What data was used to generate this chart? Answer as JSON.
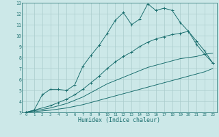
{
  "xlabel": "Humidex (Indice chaleur)",
  "bg_color": "#cce8e8",
  "grid_color": "#aacccc",
  "line_color": "#1a6e6e",
  "xlim": [
    -0.5,
    23.5
  ],
  "ylim": [
    3,
    13
  ],
  "xticks": [
    0,
    1,
    2,
    3,
    4,
    5,
    6,
    7,
    8,
    9,
    10,
    11,
    12,
    13,
    14,
    15,
    16,
    17,
    18,
    19,
    20,
    21,
    22,
    23
  ],
  "yticks": [
    3,
    4,
    5,
    6,
    7,
    8,
    9,
    10,
    11,
    12,
    13
  ],
  "line1_x": [
    0,
    1,
    2,
    3,
    4,
    5,
    6,
    7,
    8,
    9,
    10,
    11,
    12,
    13,
    14,
    15,
    16,
    17,
    18,
    19,
    20,
    21,
    22,
    23
  ],
  "line1_y": [
    3.0,
    3.2,
    4.6,
    5.1,
    5.1,
    5.0,
    5.5,
    7.2,
    8.2,
    9.1,
    10.2,
    11.4,
    12.1,
    11.0,
    11.5,
    12.9,
    12.3,
    12.5,
    12.3,
    11.2,
    10.4,
    9.2,
    8.3,
    7.5
  ],
  "line2_x": [
    0,
    3,
    4,
    5,
    6,
    7,
    8,
    9,
    10,
    11,
    12,
    13,
    14,
    15,
    16,
    17,
    18,
    19,
    20,
    21,
    22,
    23
  ],
  "line2_y": [
    3.0,
    3.6,
    3.9,
    4.2,
    4.6,
    5.1,
    5.7,
    6.3,
    7.0,
    7.6,
    8.1,
    8.5,
    9.0,
    9.4,
    9.7,
    9.9,
    10.1,
    10.2,
    10.4,
    9.5,
    8.6,
    7.5
  ],
  "line3_x": [
    0,
    3,
    4,
    5,
    6,
    7,
    8,
    9,
    10,
    11,
    12,
    13,
    14,
    15,
    16,
    17,
    18,
    19,
    20,
    21,
    22,
    23
  ],
  "line3_y": [
    3.0,
    3.4,
    3.6,
    3.8,
    4.1,
    4.4,
    4.8,
    5.2,
    5.6,
    5.9,
    6.2,
    6.5,
    6.8,
    7.1,
    7.3,
    7.5,
    7.7,
    7.9,
    8.0,
    8.1,
    8.3,
    8.4
  ],
  "line4_x": [
    0,
    3,
    4,
    5,
    6,
    7,
    8,
    9,
    10,
    11,
    12,
    13,
    14,
    15,
    16,
    17,
    18,
    19,
    20,
    21,
    22,
    23
  ],
  "line4_y": [
    3.0,
    3.2,
    3.3,
    3.4,
    3.55,
    3.7,
    3.9,
    4.1,
    4.3,
    4.5,
    4.7,
    4.9,
    5.1,
    5.3,
    5.5,
    5.7,
    5.9,
    6.1,
    6.3,
    6.5,
    6.7,
    7.0
  ]
}
